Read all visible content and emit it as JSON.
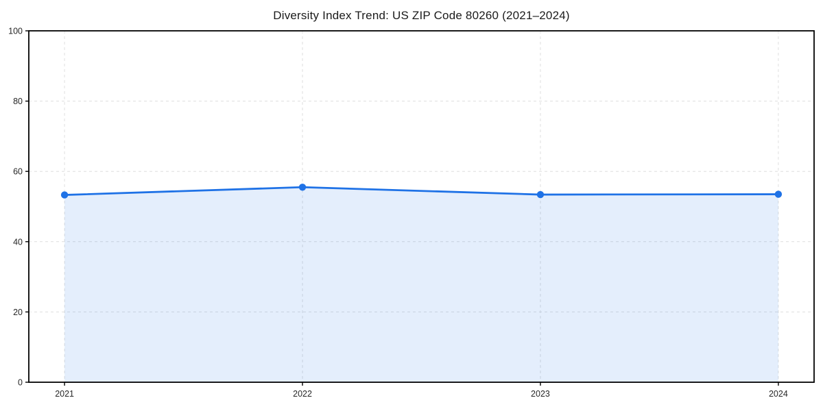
{
  "chart_data": {
    "type": "line",
    "title": "Diversity Index Trend: US ZIP Code 80260 (2021–2024)",
    "x_categories": [
      "2021",
      "2022",
      "2023",
      "2024"
    ],
    "series": [
      {
        "name": "Diversity Index",
        "values": [
          53.3,
          55.5,
          53.4,
          53.5
        ]
      }
    ],
    "ylim": [
      0,
      100
    ],
    "yticks": [
      0,
      20,
      40,
      60,
      80,
      100
    ],
    "grid": "dashed",
    "legend": "none",
    "area_fill_to_zero": true,
    "marker": "circle",
    "colors": {
      "line": "#1f72e6",
      "marker": "#1f72e6",
      "area_fill": "rgba(31,114,230,0.12)",
      "gridline": "#dedede",
      "spine": "#000000",
      "tick_label": "#262626",
      "background": "#ffffff"
    }
  }
}
